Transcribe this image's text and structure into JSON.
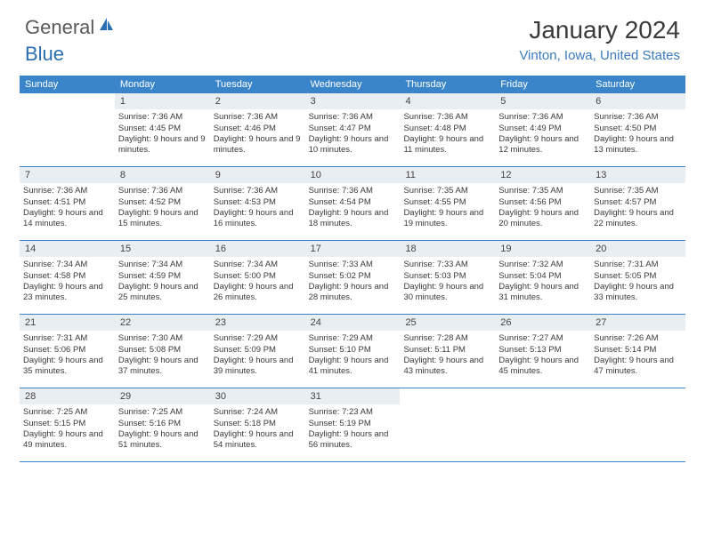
{
  "logo": {
    "text1": "General",
    "text2": "Blue"
  },
  "title": "January 2024",
  "location": "Vinton, Iowa, United States",
  "colors": {
    "header_bg": "#3a85c9",
    "header_text": "#ffffff",
    "daynum_bg": "#e9eef2",
    "border": "#3a85c9",
    "logo_gray": "#5a5a5a",
    "logo_blue": "#2b6fb3",
    "location_color": "#3a7bbf"
  },
  "dow": [
    "Sunday",
    "Monday",
    "Tuesday",
    "Wednesday",
    "Thursday",
    "Friday",
    "Saturday"
  ],
  "weeks": [
    [
      null,
      {
        "n": "1",
        "sr": "Sunrise: 7:36 AM",
        "ss": "Sunset: 4:45 PM",
        "dl": "Daylight: 9 hours and 9 minutes."
      },
      {
        "n": "2",
        "sr": "Sunrise: 7:36 AM",
        "ss": "Sunset: 4:46 PM",
        "dl": "Daylight: 9 hours and 9 minutes."
      },
      {
        "n": "3",
        "sr": "Sunrise: 7:36 AM",
        "ss": "Sunset: 4:47 PM",
        "dl": "Daylight: 9 hours and 10 minutes."
      },
      {
        "n": "4",
        "sr": "Sunrise: 7:36 AM",
        "ss": "Sunset: 4:48 PM",
        "dl": "Daylight: 9 hours and 11 minutes."
      },
      {
        "n": "5",
        "sr": "Sunrise: 7:36 AM",
        "ss": "Sunset: 4:49 PM",
        "dl": "Daylight: 9 hours and 12 minutes."
      },
      {
        "n": "6",
        "sr": "Sunrise: 7:36 AM",
        "ss": "Sunset: 4:50 PM",
        "dl": "Daylight: 9 hours and 13 minutes."
      }
    ],
    [
      {
        "n": "7",
        "sr": "Sunrise: 7:36 AM",
        "ss": "Sunset: 4:51 PM",
        "dl": "Daylight: 9 hours and 14 minutes."
      },
      {
        "n": "8",
        "sr": "Sunrise: 7:36 AM",
        "ss": "Sunset: 4:52 PM",
        "dl": "Daylight: 9 hours and 15 minutes."
      },
      {
        "n": "9",
        "sr": "Sunrise: 7:36 AM",
        "ss": "Sunset: 4:53 PM",
        "dl": "Daylight: 9 hours and 16 minutes."
      },
      {
        "n": "10",
        "sr": "Sunrise: 7:36 AM",
        "ss": "Sunset: 4:54 PM",
        "dl": "Daylight: 9 hours and 18 minutes."
      },
      {
        "n": "11",
        "sr": "Sunrise: 7:35 AM",
        "ss": "Sunset: 4:55 PM",
        "dl": "Daylight: 9 hours and 19 minutes."
      },
      {
        "n": "12",
        "sr": "Sunrise: 7:35 AM",
        "ss": "Sunset: 4:56 PM",
        "dl": "Daylight: 9 hours and 20 minutes."
      },
      {
        "n": "13",
        "sr": "Sunrise: 7:35 AM",
        "ss": "Sunset: 4:57 PM",
        "dl": "Daylight: 9 hours and 22 minutes."
      }
    ],
    [
      {
        "n": "14",
        "sr": "Sunrise: 7:34 AM",
        "ss": "Sunset: 4:58 PM",
        "dl": "Daylight: 9 hours and 23 minutes."
      },
      {
        "n": "15",
        "sr": "Sunrise: 7:34 AM",
        "ss": "Sunset: 4:59 PM",
        "dl": "Daylight: 9 hours and 25 minutes."
      },
      {
        "n": "16",
        "sr": "Sunrise: 7:34 AM",
        "ss": "Sunset: 5:00 PM",
        "dl": "Daylight: 9 hours and 26 minutes."
      },
      {
        "n": "17",
        "sr": "Sunrise: 7:33 AM",
        "ss": "Sunset: 5:02 PM",
        "dl": "Daylight: 9 hours and 28 minutes."
      },
      {
        "n": "18",
        "sr": "Sunrise: 7:33 AM",
        "ss": "Sunset: 5:03 PM",
        "dl": "Daylight: 9 hours and 30 minutes."
      },
      {
        "n": "19",
        "sr": "Sunrise: 7:32 AM",
        "ss": "Sunset: 5:04 PM",
        "dl": "Daylight: 9 hours and 31 minutes."
      },
      {
        "n": "20",
        "sr": "Sunrise: 7:31 AM",
        "ss": "Sunset: 5:05 PM",
        "dl": "Daylight: 9 hours and 33 minutes."
      }
    ],
    [
      {
        "n": "21",
        "sr": "Sunrise: 7:31 AM",
        "ss": "Sunset: 5:06 PM",
        "dl": "Daylight: 9 hours and 35 minutes."
      },
      {
        "n": "22",
        "sr": "Sunrise: 7:30 AM",
        "ss": "Sunset: 5:08 PM",
        "dl": "Daylight: 9 hours and 37 minutes."
      },
      {
        "n": "23",
        "sr": "Sunrise: 7:29 AM",
        "ss": "Sunset: 5:09 PM",
        "dl": "Daylight: 9 hours and 39 minutes."
      },
      {
        "n": "24",
        "sr": "Sunrise: 7:29 AM",
        "ss": "Sunset: 5:10 PM",
        "dl": "Daylight: 9 hours and 41 minutes."
      },
      {
        "n": "25",
        "sr": "Sunrise: 7:28 AM",
        "ss": "Sunset: 5:11 PM",
        "dl": "Daylight: 9 hours and 43 minutes."
      },
      {
        "n": "26",
        "sr": "Sunrise: 7:27 AM",
        "ss": "Sunset: 5:13 PM",
        "dl": "Daylight: 9 hours and 45 minutes."
      },
      {
        "n": "27",
        "sr": "Sunrise: 7:26 AM",
        "ss": "Sunset: 5:14 PM",
        "dl": "Daylight: 9 hours and 47 minutes."
      }
    ],
    [
      {
        "n": "28",
        "sr": "Sunrise: 7:25 AM",
        "ss": "Sunset: 5:15 PM",
        "dl": "Daylight: 9 hours and 49 minutes."
      },
      {
        "n": "29",
        "sr": "Sunrise: 7:25 AM",
        "ss": "Sunset: 5:16 PM",
        "dl": "Daylight: 9 hours and 51 minutes."
      },
      {
        "n": "30",
        "sr": "Sunrise: 7:24 AM",
        "ss": "Sunset: 5:18 PM",
        "dl": "Daylight: 9 hours and 54 minutes."
      },
      {
        "n": "31",
        "sr": "Sunrise: 7:23 AM",
        "ss": "Sunset: 5:19 PM",
        "dl": "Daylight: 9 hours and 56 minutes."
      },
      null,
      null,
      null
    ]
  ]
}
